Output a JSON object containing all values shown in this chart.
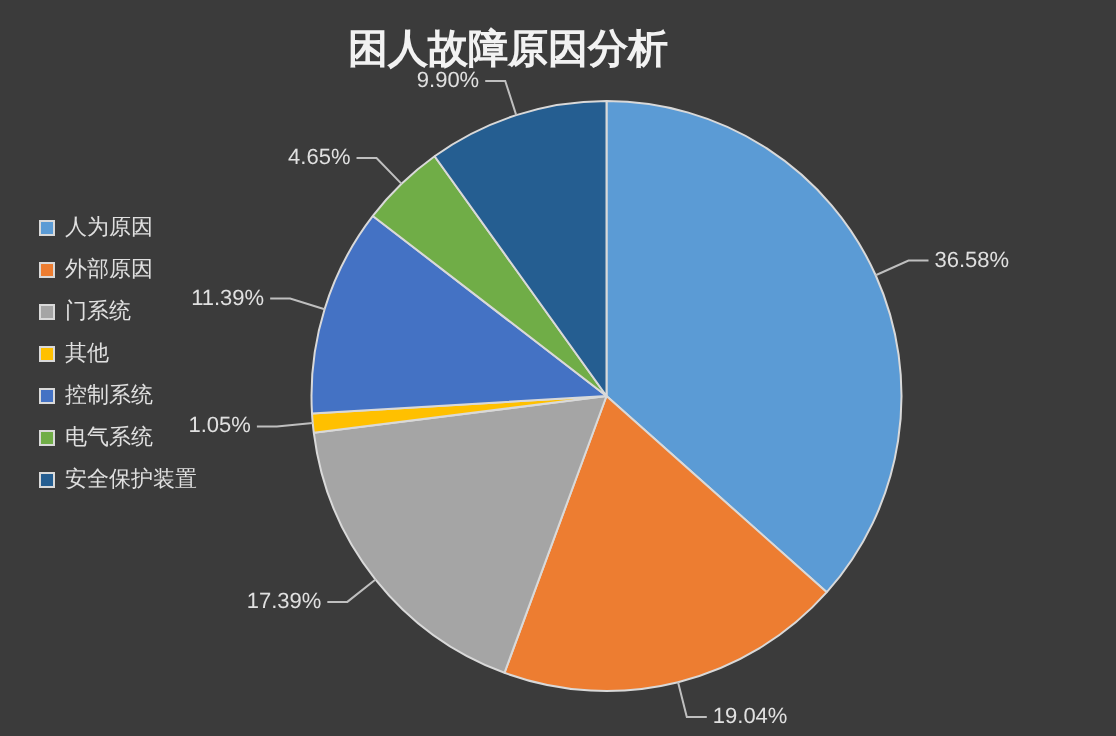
{
  "chart_data": {
    "type": "pie",
    "title": "困人故障原因分析",
    "categories": [
      "人为原因",
      "外部原因",
      "门系统",
      "其他",
      "控制系统",
      "电气系统",
      "安全保护装置"
    ],
    "values": [
      36.58,
      19.04,
      17.39,
      1.05,
      11.39,
      4.65,
      9.9
    ],
    "value_labels": [
      "36.58%",
      "19.04%",
      "17.39%",
      "1.05%",
      "11.39%",
      "4.65%",
      "9.90%"
    ],
    "colors": [
      "#5b9bd5",
      "#ed7d31",
      "#a5a5a5",
      "#ffc000",
      "#4472c4",
      "#70ad47",
      "#255e91"
    ],
    "legend": "left"
  }
}
